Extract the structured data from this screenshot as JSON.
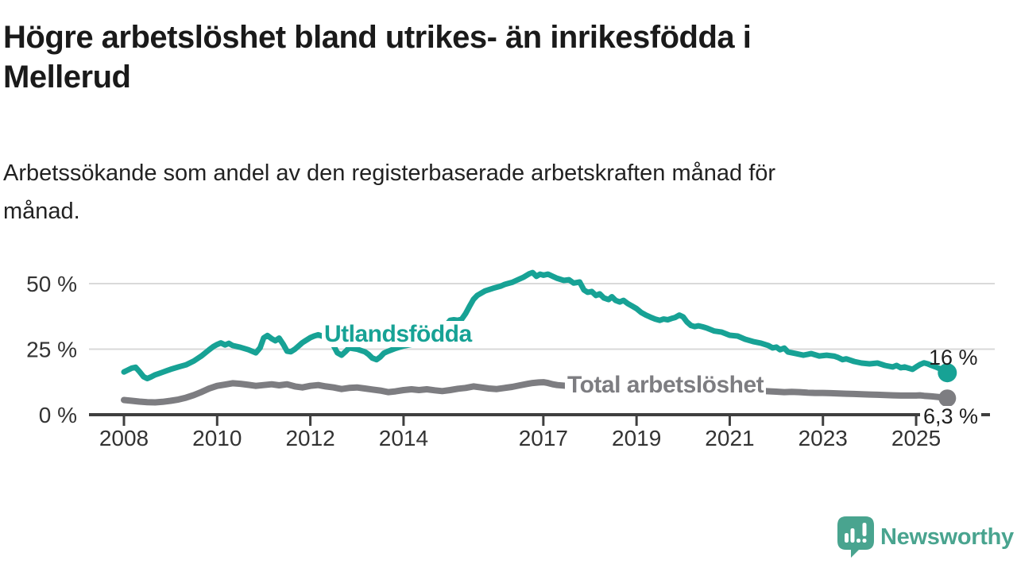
{
  "title_lines": [
    "Högre arbetslöshet bland utrikes- än inrikesfödda i",
    "Mellerud"
  ],
  "subtitle_lines": [
    "Arbetssökande som andel av den registerbaserade arbetskraften månad för",
    "månad."
  ],
  "branding": {
    "logo_text": "Newsworthy",
    "logo_icon": "newsworthy-speech-bubble-bar-chart-icon"
  },
  "colors": {
    "accent_teal": "#17a295",
    "series_gray": "#7d7d81",
    "logo_teal": "#49a48f",
    "text_dark": "#1a1a1a",
    "axis": "#3f3f3f",
    "gridline": "#d9d9d9"
  },
  "chart_data": {
    "type": "line",
    "title": "Högre arbetslöshet bland utrikes- än inrikesfödda i Mellerud",
    "subtitle": "Arbetssökande som andel av den registerbaserade arbetskraften månad för månad.",
    "grid": "horizontal",
    "x_axis": {
      "range": [
        2007.25,
        2026.7
      ],
      "ticks": [
        {
          "value": 2008,
          "label": "2008"
        },
        {
          "value": 2010,
          "label": "2010"
        },
        {
          "value": 2012,
          "label": "2012"
        },
        {
          "value": 2014,
          "label": "2014"
        },
        {
          "value": 2017,
          "label": "2017"
        },
        {
          "value": 2019,
          "label": "2019"
        },
        {
          "value": 2021,
          "label": "2021"
        },
        {
          "value": 2023,
          "label": "2023"
        },
        {
          "value": 2025,
          "label": "2025"
        }
      ]
    },
    "y_axis": {
      "range": [
        0,
        58
      ],
      "unit": "%",
      "ticks": [
        {
          "value": 0,
          "label": "0 %"
        },
        {
          "value": 25,
          "label": "25 %"
        },
        {
          "value": 50,
          "label": "50 %"
        }
      ]
    },
    "series": [
      {
        "name": "Utlandsfödda",
        "color": "#17a295",
        "end_label": "16 %",
        "end_value": 16,
        "points": [
          [
            2008.0,
            16.3
          ],
          [
            2008.08,
            17.0
          ],
          [
            2008.17,
            17.8
          ],
          [
            2008.25,
            18.1
          ],
          [
            2008.33,
            16.5
          ],
          [
            2008.42,
            14.5
          ],
          [
            2008.5,
            13.8
          ],
          [
            2008.58,
            14.4
          ],
          [
            2008.67,
            15.2
          ],
          [
            2008.75,
            15.7
          ],
          [
            2008.83,
            16.2
          ],
          [
            2008.92,
            16.8
          ],
          [
            2009.0,
            17.3
          ],
          [
            2009.17,
            18.2
          ],
          [
            2009.33,
            19.0
          ],
          [
            2009.5,
            20.5
          ],
          [
            2009.67,
            22.5
          ],
          [
            2009.83,
            24.8
          ],
          [
            2009.92,
            26.0
          ],
          [
            2010.0,
            26.8
          ],
          [
            2010.08,
            27.4
          ],
          [
            2010.17,
            26.6
          ],
          [
            2010.25,
            27.2
          ],
          [
            2010.33,
            26.4
          ],
          [
            2010.5,
            25.7
          ],
          [
            2010.67,
            24.8
          ],
          [
            2010.83,
            23.6
          ],
          [
            2010.92,
            25.5
          ],
          [
            2011.0,
            29.3
          ],
          [
            2011.08,
            30.2
          ],
          [
            2011.17,
            29.0
          ],
          [
            2011.25,
            28.2
          ],
          [
            2011.33,
            29.2
          ],
          [
            2011.42,
            26.8
          ],
          [
            2011.5,
            24.2
          ],
          [
            2011.58,
            24.0
          ],
          [
            2011.67,
            25.0
          ],
          [
            2011.83,
            27.5
          ],
          [
            2012.0,
            29.4
          ],
          [
            2012.08,
            30.0
          ],
          [
            2012.17,
            30.5
          ],
          [
            2012.25,
            30.0
          ],
          [
            2012.33,
            29.4
          ],
          [
            2012.42,
            28.3
          ],
          [
            2012.5,
            26.3
          ],
          [
            2012.58,
            23.6
          ],
          [
            2012.67,
            22.7
          ],
          [
            2012.75,
            24.0
          ],
          [
            2012.83,
            25.5
          ],
          [
            2012.92,
            25.2
          ],
          [
            2013.0,
            25.0
          ],
          [
            2013.08,
            24.5
          ],
          [
            2013.17,
            24.0
          ],
          [
            2013.25,
            23.0
          ],
          [
            2013.33,
            21.6
          ],
          [
            2013.42,
            21.0
          ],
          [
            2013.5,
            22.0
          ],
          [
            2013.58,
            23.5
          ],
          [
            2013.67,
            24.2
          ],
          [
            2013.83,
            25.3
          ],
          [
            2014.0,
            26.2
          ],
          [
            2014.17,
            26.8
          ],
          [
            2014.33,
            27.5
          ],
          [
            2014.5,
            28.3
          ],
          [
            2014.67,
            30.0
          ],
          [
            2014.83,
            32.0
          ],
          [
            2014.92,
            34.3
          ],
          [
            2015.0,
            36.0
          ],
          [
            2015.08,
            36.2
          ],
          [
            2015.17,
            36.0
          ],
          [
            2015.25,
            36.5
          ],
          [
            2015.33,
            38.5
          ],
          [
            2015.42,
            41.5
          ],
          [
            2015.5,
            44.0
          ],
          [
            2015.58,
            45.5
          ],
          [
            2015.75,
            47.2
          ],
          [
            2015.92,
            48.2
          ],
          [
            2016.08,
            49.0
          ],
          [
            2016.17,
            49.7
          ],
          [
            2016.33,
            50.5
          ],
          [
            2016.42,
            51.2
          ],
          [
            2016.58,
            52.5
          ],
          [
            2016.7,
            53.8
          ],
          [
            2016.77,
            54.2
          ],
          [
            2016.85,
            52.8
          ],
          [
            2016.93,
            53.6
          ],
          [
            2017.0,
            53.2
          ],
          [
            2017.1,
            53.6
          ],
          [
            2017.2,
            52.8
          ],
          [
            2017.3,
            52.0
          ],
          [
            2017.44,
            51.2
          ],
          [
            2017.55,
            51.5
          ],
          [
            2017.65,
            50.2
          ],
          [
            2017.78,
            50.6
          ],
          [
            2017.87,
            47.6
          ],
          [
            2017.95,
            46.7
          ],
          [
            2018.04,
            47.0
          ],
          [
            2018.13,
            45.5
          ],
          [
            2018.21,
            46.1
          ],
          [
            2018.3,
            44.5
          ],
          [
            2018.4,
            43.9
          ],
          [
            2018.47,
            45.0
          ],
          [
            2018.55,
            43.6
          ],
          [
            2018.64,
            43.0
          ],
          [
            2018.72,
            43.6
          ],
          [
            2018.81,
            42.4
          ],
          [
            2018.9,
            41.5
          ],
          [
            2019.0,
            40.5
          ],
          [
            2019.1,
            39.0
          ],
          [
            2019.2,
            38.0
          ],
          [
            2019.3,
            37.2
          ],
          [
            2019.4,
            36.5
          ],
          [
            2019.5,
            36.0
          ],
          [
            2019.58,
            36.5
          ],
          [
            2019.67,
            36.2
          ],
          [
            2019.75,
            36.7
          ],
          [
            2019.83,
            37.1
          ],
          [
            2019.92,
            38.0
          ],
          [
            2020.0,
            37.3
          ],
          [
            2020.08,
            35.4
          ],
          [
            2020.17,
            34.0
          ],
          [
            2020.25,
            33.6
          ],
          [
            2020.33,
            33.9
          ],
          [
            2020.42,
            33.5
          ],
          [
            2020.5,
            33.1
          ],
          [
            2020.67,
            31.9
          ],
          [
            2020.83,
            31.5
          ],
          [
            2021.0,
            30.3
          ],
          [
            2021.17,
            30.0
          ],
          [
            2021.33,
            28.8
          ],
          [
            2021.5,
            27.9
          ],
          [
            2021.67,
            27.3
          ],
          [
            2021.83,
            26.4
          ],
          [
            2021.92,
            25.5
          ],
          [
            2022.0,
            25.8
          ],
          [
            2022.08,
            24.8
          ],
          [
            2022.17,
            25.4
          ],
          [
            2022.25,
            23.9
          ],
          [
            2022.42,
            23.3
          ],
          [
            2022.58,
            22.7
          ],
          [
            2022.75,
            23.3
          ],
          [
            2022.92,
            22.4
          ],
          [
            2023.08,
            22.7
          ],
          [
            2023.25,
            22.3
          ],
          [
            2023.33,
            21.8
          ],
          [
            2023.42,
            21.0
          ],
          [
            2023.5,
            21.3
          ],
          [
            2023.67,
            20.3
          ],
          [
            2023.83,
            19.7
          ],
          [
            2024.0,
            19.4
          ],
          [
            2024.17,
            19.7
          ],
          [
            2024.33,
            18.8
          ],
          [
            2024.5,
            18.2
          ],
          [
            2024.58,
            18.8
          ],
          [
            2024.67,
            17.9
          ],
          [
            2024.75,
            18.2
          ],
          [
            2024.92,
            17.3
          ],
          [
            2025.0,
            18.2
          ],
          [
            2025.08,
            19.1
          ],
          [
            2025.17,
            19.8
          ],
          [
            2025.25,
            19.4
          ],
          [
            2025.33,
            18.8
          ],
          [
            2025.42,
            18.2
          ],
          [
            2025.5,
            17.6
          ],
          [
            2025.58,
            16.5
          ],
          [
            2025.67,
            16.0
          ]
        ]
      },
      {
        "name": "Total arbetslöshet",
        "color": "#7d7d81",
        "end_label": "6,3 %",
        "end_value": 6.3,
        "points": [
          [
            2008.0,
            5.6
          ],
          [
            2008.17,
            5.3
          ],
          [
            2008.33,
            5.0
          ],
          [
            2008.5,
            4.8
          ],
          [
            2008.67,
            4.7
          ],
          [
            2008.83,
            4.9
          ],
          [
            2009.0,
            5.3
          ],
          [
            2009.17,
            5.8
          ],
          [
            2009.33,
            6.5
          ],
          [
            2009.5,
            7.5
          ],
          [
            2009.67,
            8.7
          ],
          [
            2009.83,
            10.0
          ],
          [
            2010.0,
            11.0
          ],
          [
            2010.17,
            11.5
          ],
          [
            2010.33,
            12.0
          ],
          [
            2010.5,
            11.8
          ],
          [
            2010.67,
            11.4
          ],
          [
            2010.83,
            11.0
          ],
          [
            2011.0,
            11.3
          ],
          [
            2011.17,
            11.6
          ],
          [
            2011.33,
            11.2
          ],
          [
            2011.5,
            11.6
          ],
          [
            2011.67,
            10.8
          ],
          [
            2011.83,
            10.4
          ],
          [
            2012.0,
            11.0
          ],
          [
            2012.17,
            11.3
          ],
          [
            2012.33,
            10.8
          ],
          [
            2012.5,
            10.4
          ],
          [
            2012.67,
            9.8
          ],
          [
            2012.83,
            10.2
          ],
          [
            2013.0,
            10.4
          ],
          [
            2013.17,
            10.0
          ],
          [
            2013.33,
            9.6
          ],
          [
            2013.5,
            9.2
          ],
          [
            2013.67,
            8.6
          ],
          [
            2013.83,
            8.9
          ],
          [
            2014.0,
            9.4
          ],
          [
            2014.17,
            9.7
          ],
          [
            2014.33,
            9.4
          ],
          [
            2014.5,
            9.7
          ],
          [
            2014.67,
            9.3
          ],
          [
            2014.83,
            9.0
          ],
          [
            2015.0,
            9.4
          ],
          [
            2015.17,
            9.9
          ],
          [
            2015.33,
            10.2
          ],
          [
            2015.5,
            10.8
          ],
          [
            2015.67,
            10.4
          ],
          [
            2015.83,
            10.0
          ],
          [
            2016.0,
            9.8
          ],
          [
            2016.17,
            10.2
          ],
          [
            2016.33,
            10.6
          ],
          [
            2016.5,
            11.2
          ],
          [
            2016.67,
            11.8
          ],
          [
            2016.77,
            12.1
          ],
          [
            2016.9,
            12.3
          ],
          [
            2017.0,
            12.4
          ],
          [
            2017.1,
            12.1
          ],
          [
            2017.2,
            11.6
          ],
          [
            2017.3,
            11.3
          ],
          [
            2017.5,
            11.0
          ],
          [
            2017.75,
            10.7
          ],
          [
            2018.0,
            10.9
          ],
          [
            2018.25,
            11.1
          ],
          [
            2018.5,
            10.8
          ],
          [
            2018.75,
            10.5
          ],
          [
            2019.0,
            10.3
          ],
          [
            2019.25,
            10.1
          ],
          [
            2019.5,
            10.2
          ],
          [
            2019.75,
            10.0
          ],
          [
            2020.0,
            9.9
          ],
          [
            2020.25,
            10.1
          ],
          [
            2020.5,
            10.0
          ],
          [
            2020.75,
            9.7
          ],
          [
            2021.0,
            9.5
          ],
          [
            2021.25,
            9.4
          ],
          [
            2021.5,
            9.2
          ],
          [
            2021.75,
            9.0
          ],
          [
            2022.0,
            8.8
          ],
          [
            2022.17,
            8.6
          ],
          [
            2022.33,
            8.7
          ],
          [
            2022.5,
            8.6
          ],
          [
            2022.67,
            8.4
          ],
          [
            2022.83,
            8.3
          ],
          [
            2023.0,
            8.3
          ],
          [
            2023.17,
            8.2
          ],
          [
            2023.33,
            8.1
          ],
          [
            2023.5,
            8.0
          ],
          [
            2023.67,
            7.9
          ],
          [
            2023.83,
            7.8
          ],
          [
            2024.0,
            7.7
          ],
          [
            2024.17,
            7.6
          ],
          [
            2024.33,
            7.5
          ],
          [
            2024.5,
            7.4
          ],
          [
            2024.67,
            7.3
          ],
          [
            2024.83,
            7.3
          ],
          [
            2025.0,
            7.3
          ],
          [
            2025.08,
            7.4
          ],
          [
            2025.17,
            7.2
          ],
          [
            2025.33,
            7.0
          ],
          [
            2025.5,
            6.7
          ],
          [
            2025.58,
            6.5
          ],
          [
            2025.67,
            6.3
          ]
        ]
      }
    ],
    "legend_position": "inline-annotations"
  }
}
